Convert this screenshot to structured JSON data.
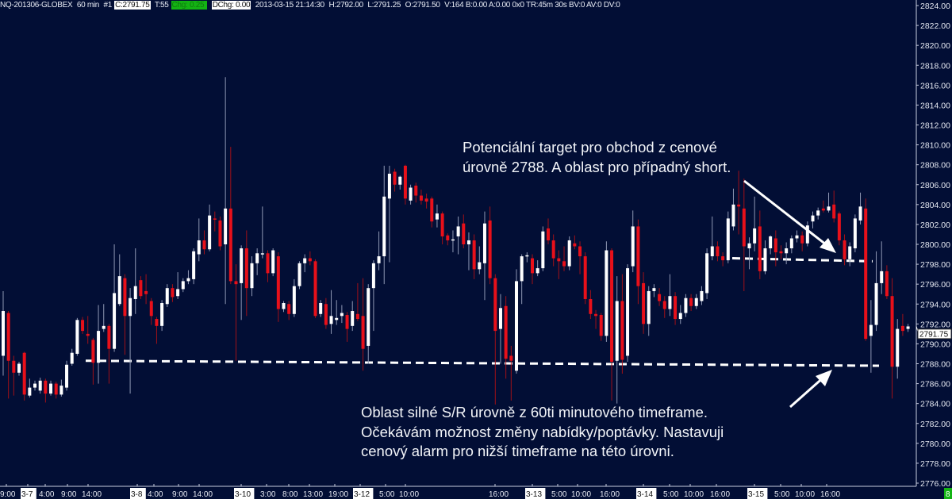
{
  "header": {
    "symbol": "NQ-201306-GLOBEX",
    "interval": "60 min",
    "id": "#1",
    "close": "C:2791.75",
    "ticks": "T:55",
    "change": "Chg: 0.25",
    "dchange": "DChg: 0.00",
    "datetime": "2013-03-15 21:14:30",
    "high": "H:2792.00",
    "low": "L:2791.25",
    "open": "O:2791.50",
    "rest": "V:164 B:0.00 A:0.00 0x0 TR:45m 30s BV:0 AV:0 DV:0"
  },
  "colors": {
    "background": "#020e35",
    "up": "#ffffff",
    "down": "#e8101a",
    "axis": "#c8cde0",
    "change_badge": "#13b313"
  },
  "annotations": {
    "top": [
      "Potenciální target pro obchod z cenové",
      "úrovně 2788. A oblast pro případný short."
    ],
    "bottom": [
      "Oblast silné S/R úrovně z 60ti minutového timeframe.",
      "Očekávám možnost změny nabídky/poptávky. Nastavuji",
      "cenový alarm pro nižší timeframe na této úrovni."
    ]
  },
  "corner_badge": "8",
  "chart_data": {
    "type": "candlestick",
    "instrument": "NQ-201306-GLOBEX",
    "ylim": [
      2776,
      2824
    ],
    "y_ticks": [
      "2824.00",
      "2822.00",
      "2820.00",
      "2818.00",
      "2816.00",
      "2814.00",
      "2812.00",
      "2810.00",
      "2808.00",
      "2806.00",
      "2804.00",
      "2802.00",
      "2800.00",
      "2798.00",
      "2796.00",
      "2794.00",
      "2792.00",
      "2790.00",
      "2788.00",
      "2786.00",
      "2784.00",
      "2782.00",
      "2780.00",
      "2778.00",
      "2776.00"
    ],
    "last_price": 2791.75,
    "last_price_label": "2791.75",
    "x_ticks": [
      {
        "label": "9:00",
        "date": false
      },
      {
        "label": "3-7",
        "date": true
      },
      {
        "label": "4:00",
        "date": false
      },
      {
        "label": "9:00",
        "date": false
      },
      {
        "label": "14:00",
        "date": false
      },
      {
        "label": "3-8",
        "date": true
      },
      {
        "label": "4:00",
        "date": false
      },
      {
        "label": "9:00",
        "date": false
      },
      {
        "label": "14:00",
        "date": false
      },
      {
        "label": "3-10",
        "date": true
      },
      {
        "label": "3:00",
        "date": false
      },
      {
        "label": "8:00",
        "date": false
      },
      {
        "label": "13:00",
        "date": false
      },
      {
        "label": "19:00",
        "date": false
      },
      {
        "label": "3-12",
        "date": true
      },
      {
        "label": "5:00",
        "date": false
      },
      {
        "label": "10:00",
        "date": false
      },
      {
        "label": "16:00",
        "date": false
      },
      {
        "label": "3-13",
        "date": true
      },
      {
        "label": "5:00",
        "date": false
      },
      {
        "label": "10:00",
        "date": false
      },
      {
        "label": "16:00",
        "date": false
      },
      {
        "label": "3-14",
        "date": true
      },
      {
        "label": "5:00",
        "date": false
      },
      {
        "label": "10:00",
        "date": false
      },
      {
        "label": "16:00",
        "date": false
      },
      {
        "label": "3-15",
        "date": true
      },
      {
        "label": "5:00",
        "date": false
      },
      {
        "label": "10:00",
        "date": false
      },
      {
        "label": "16:00",
        "date": false
      }
    ],
    "levels": [
      {
        "name": "support-resistance",
        "from": 2788.3,
        "to": 2787.8
      },
      {
        "name": "target",
        "from": 2798.6,
        "to": 2798.3
      }
    ],
    "ohlc": [
      [
        2788.8,
        2795.3,
        2786.8,
        2793.3
      ],
      [
        2793.1,
        2793.3,
        2784.5,
        2788.3
      ],
      [
        2788.3,
        2788.8,
        2784.8,
        2787.1
      ],
      [
        2787.1,
        2788.2,
        2786.8,
        2788.0
      ],
      [
        2789.1,
        2789.2,
        2784.3,
        2784.9
      ],
      [
        2784.8,
        2786.5,
        2784.6,
        2785.6
      ],
      [
        2785.6,
        2786.3,
        2785.3,
        2786.0
      ],
      [
        2785.3,
        2786.6,
        2785.0,
        2786.3
      ],
      [
        2786.3,
        2786.5,
        2784.1,
        2785.0
      ],
      [
        2785.0,
        2786.3,
        2784.8,
        2786.0
      ],
      [
        2786.0,
        2786.2,
        2784.5,
        2784.9
      ],
      [
        2784.9,
        2786.4,
        2784.7,
        2785.8
      ],
      [
        2785.6,
        2788.3,
        2785.3,
        2787.9
      ],
      [
        2788.0,
        2789.5,
        2787.8,
        2789.1
      ],
      [
        2789.0,
        2792.6,
        2788.8,
        2792.4
      ],
      [
        2792.4,
        2792.7,
        2791.0,
        2791.3
      ],
      [
        2791.0,
        2792.8,
        2790.0,
        2790.8
      ],
      [
        2790.4,
        2790.6,
        2785.9,
        2788.1
      ],
      [
        2788.1,
        2793.9,
        2786.0,
        2791.3
      ],
      [
        2791.5,
        2794.0,
        2791.2,
        2791.8
      ],
      [
        2791.8,
        2792.0,
        2786.0,
        2789.5
      ],
      [
        2789.5,
        2800.0,
        2789.2,
        2795.1
      ],
      [
        2794.0,
        2799.0,
        2793.8,
        2796.8
      ],
      [
        2796.6,
        2797.0,
        2788.9,
        2792.8
      ],
      [
        2792.8,
        2795.6,
        2785.0,
        2794.6
      ],
      [
        2794.5,
        2799.6,
        2793.0,
        2795.8
      ],
      [
        2796.4,
        2796.8,
        2794.5,
        2794.8
      ],
      [
        2795.3,
        2797.0,
        2794.0,
        2795.0
      ],
      [
        2794.3,
        2794.6,
        2791.9,
        2792.8
      ],
      [
        2792.5,
        2792.7,
        2790.0,
        2791.8
      ],
      [
        2791.8,
        2794.4,
        2791.3,
        2794.1
      ],
      [
        2794.0,
        2796.0,
        2793.7,
        2795.6
      ],
      [
        2795.6,
        2796.0,
        2794.2,
        2794.7
      ],
      [
        2794.8,
        2797.2,
        2794.5,
        2795.5
      ],
      [
        2795.5,
        2796.6,
        2795.2,
        2796.3
      ],
      [
        2796.3,
        2797.4,
        2796.0,
        2796.6
      ],
      [
        2796.5,
        2799.6,
        2796.0,
        2799.3
      ],
      [
        2799.0,
        2802.6,
        2798.3,
        2800.4
      ],
      [
        2800.4,
        2801.4,
        2799.0,
        2799.5
      ],
      [
        2799.5,
        2804.0,
        2799.3,
        2802.9
      ],
      [
        2802.6,
        2803.3,
        2801.3,
        2802.5
      ],
      [
        2802.4,
        2802.8,
        2799.4,
        2799.8
      ],
      [
        2800.0,
        2816.8,
        2794.0,
        2803.6
      ],
      [
        2803.6,
        2809.8,
        2796.0,
        2796.3
      ],
      [
        2796.3,
        2798.0,
        2788.3,
        2796.0
      ],
      [
        2796.1,
        2799.9,
        2792.4,
        2799.6
      ],
      [
        2799.6,
        2801.4,
        2792.8,
        2795.6
      ],
      [
        2795.6,
        2798.8,
        2794.8,
        2798.1
      ],
      [
        2798.1,
        2799.6,
        2796.9,
        2799.1
      ],
      [
        2799.0,
        2803.8,
        2798.6,
        2799.1
      ],
      [
        2799.1,
        2799.4,
        2796.2,
        2797.1
      ],
      [
        2797.1,
        2799.6,
        2796.8,
        2799.4
      ],
      [
        2798.8,
        2799.2,
        2792.2,
        2793.5
      ],
      [
        2793.5,
        2794.3,
        2793.2,
        2794.1
      ],
      [
        2794.0,
        2794.3,
        2792.4,
        2793.0
      ],
      [
        2793.0,
        2796.5,
        2792.7,
        2795.8
      ],
      [
        2795.8,
        2798.3,
        2795.5,
        2798.1
      ],
      [
        2798.1,
        2799.0,
        2797.2,
        2798.6
      ],
      [
        2798.6,
        2799.3,
        2797.9,
        2798.3
      ],
      [
        2798.3,
        2798.5,
        2792.6,
        2792.8
      ],
      [
        2793.0,
        2794.4,
        2792.7,
        2794.1
      ],
      [
        2794.0,
        2794.6,
        2791.5,
        2791.9
      ],
      [
        2792.0,
        2795.4,
        2791.0,
        2792.8
      ],
      [
        2792.4,
        2794.4,
        2791.9,
        2792.6
      ],
      [
        2792.8,
        2793.9,
        2792.1,
        2793.1
      ],
      [
        2792.9,
        2793.2,
        2790.2,
        2791.5
      ],
      [
        2791.8,
        2794.3,
        2791.3,
        2793.3
      ],
      [
        2793.0,
        2796.1,
        2792.3,
        2792.5
      ],
      [
        2792.8,
        2796.6,
        2787.3,
        2789.5
      ],
      [
        2789.8,
        2796.0,
        2788.0,
        2795.6
      ],
      [
        2795.6,
        2798.4,
        2791.3,
        2798.1
      ],
      [
        2798.1,
        2801.3,
        2797.4,
        2798.8
      ],
      [
        2798.8,
        2807.9,
        2796.0,
        2804.8
      ],
      [
        2804.6,
        2807.9,
        2798.2,
        2807.1
      ],
      [
        2807.3,
        2807.6,
        2805.3,
        2806.0
      ],
      [
        2806.0,
        2806.9,
        2805.5,
        2806.8
      ],
      [
        2807.9,
        2808.0,
        2804.0,
        2804.6
      ],
      [
        2804.4,
        2806.0,
        2804.0,
        2805.7
      ],
      [
        2805.9,
        2806.2,
        2804.2,
        2804.9
      ],
      [
        2804.9,
        2805.5,
        2804.0,
        2804.4
      ],
      [
        2804.6,
        2805.1,
        2803.6,
        2804.3
      ],
      [
        2804.6,
        2804.8,
        2801.7,
        2802.3
      ],
      [
        2802.5,
        2804.0,
        2801.7,
        2803.1
      ],
      [
        2803.1,
        2803.3,
        2800.0,
        2800.8
      ],
      [
        2800.9,
        2801.1,
        2799.9,
        2800.4
      ],
      [
        2800.5,
        2801.4,
        2799.2,
        2800.5
      ],
      [
        2800.8,
        2802.8,
        2799.0,
        2801.8
      ],
      [
        2802.1,
        2803.0,
        2799.6,
        2800.0
      ],
      [
        2800.0,
        2801.2,
        2797.4,
        2800.4
      ],
      [
        2800.4,
        2801.0,
        2796.5,
        2797.5
      ],
      [
        2797.5,
        2799.8,
        2797.0,
        2798.2
      ],
      [
        2798.1,
        2803.3,
        2794.4,
        2802.1
      ],
      [
        2802.4,
        2803.8,
        2796.0,
        2796.6
      ],
      [
        2796.6,
        2797.0,
        2783.9,
        2791.3
      ],
      [
        2791.5,
        2795.0,
        2788.0,
        2793.6
      ],
      [
        2793.8,
        2794.8,
        2786.5,
        2788.5
      ],
      [
        2788.8,
        2789.8,
        2784.3,
        2788.3
      ],
      [
        2787.3,
        2797.5,
        2787.0,
        2796.3
      ],
      [
        2796.3,
        2799.0,
        2794.0,
        2798.8
      ],
      [
        2798.8,
        2799.2,
        2798.2,
        2798.9
      ],
      [
        2798.6,
        2799.0,
        2796.0,
        2797.1
      ],
      [
        2797.1,
        2798.4,
        2796.8,
        2797.6
      ],
      [
        2797.6,
        2801.8,
        2797.3,
        2801.3
      ],
      [
        2801.6,
        2802.6,
        2800.0,
        2800.4
      ],
      [
        2800.4,
        2801.0,
        2797.8,
        2798.6
      ],
      [
        2798.6,
        2799.4,
        2796.5,
        2798.3
      ],
      [
        2798.3,
        2799.8,
        2797.3,
        2797.8
      ],
      [
        2797.8,
        2800.8,
        2797.4,
        2800.4
      ],
      [
        2800.1,
        2800.9,
        2799.5,
        2799.8
      ],
      [
        2799.8,
        2800.3,
        2797.0,
        2798.8
      ],
      [
        2798.8,
        2799.2,
        2794.0,
        2794.5
      ],
      [
        2794.5,
        2795.4,
        2792.5,
        2793.0
      ],
      [
        2793.0,
        2793.4,
        2791.5,
        2792.8
      ],
      [
        2792.9,
        2793.1,
        2790.3,
        2790.8
      ],
      [
        2790.8,
        2800.3,
        2790.2,
        2799.4
      ],
      [
        2799.4,
        2799.6,
        2784.3,
        2788.2
      ],
      [
        2788.3,
        2796.8,
        2784.0,
        2794.3
      ],
      [
        2794.3,
        2797.0,
        2787.0,
        2788.4
      ],
      [
        2788.8,
        2798.0,
        2788.2,
        2797.6
      ],
      [
        2797.8,
        2803.4,
        2797.2,
        2801.8
      ],
      [
        2801.8,
        2802.5,
        2794.0,
        2795.8
      ],
      [
        2796.1,
        2797.2,
        2791.0,
        2792.0
      ],
      [
        2792.0,
        2795.8,
        2790.8,
        2795.3
      ],
      [
        2795.3,
        2796.0,
        2794.7,
        2795.6
      ],
      [
        2795.0,
        2795.6,
        2793.8,
        2794.3
      ],
      [
        2794.3,
        2794.8,
        2792.6,
        2793.5
      ],
      [
        2793.5,
        2797.0,
        2792.8,
        2794.8
      ],
      [
        2794.8,
        2795.2,
        2791.9,
        2792.5
      ],
      [
        2792.5,
        2793.9,
        2792.0,
        2793.1
      ],
      [
        2793.1,
        2795.0,
        2792.7,
        2794.6
      ],
      [
        2794.6,
        2795.0,
        2793.3,
        2793.8
      ],
      [
        2793.8,
        2795.0,
        2793.5,
        2794.6
      ],
      [
        2794.3,
        2795.8,
        2793.9,
        2795.3
      ],
      [
        2795.1,
        2799.6,
        2794.5,
        2799.1
      ],
      [
        2798.8,
        2802.8,
        2798.4,
        2799.8
      ],
      [
        2799.8,
        2800.3,
        2798.3,
        2798.8
      ],
      [
        2798.8,
        2799.2,
        2797.8,
        2798.4
      ],
      [
        2798.4,
        2803.3,
        2798.1,
        2802.6
      ],
      [
        2801.8,
        2805.6,
        2801.4,
        2804.0
      ],
      [
        2804.0,
        2807.4,
        2801.0,
        2803.8
      ],
      [
        2803.6,
        2806.6,
        2795.3,
        2799.8
      ],
      [
        2799.6,
        2800.7,
        2797.5,
        2800.1
      ],
      [
        2800.1,
        2804.8,
        2799.3,
        2801.6
      ],
      [
        2801.8,
        2803.4,
        2796.5,
        2797.3
      ],
      [
        2797.3,
        2800.4,
        2797.0,
        2799.6
      ],
      [
        2799.6,
        2800.9,
        2799.0,
        2800.8
      ],
      [
        2800.6,
        2801.4,
        2797.8,
        2799.2
      ],
      [
        2799.3,
        2799.9,
        2798.5,
        2799.1
      ],
      [
        2799.1,
        2800.2,
        2798.0,
        2799.6
      ],
      [
        2799.6,
        2800.9,
        2799.1,
        2800.6
      ],
      [
        2800.6,
        2801.4,
        2800.2,
        2800.9
      ],
      [
        2800.9,
        2801.3,
        2799.3,
        2800.1
      ],
      [
        2800.1,
        2802.3,
        2799.8,
        2801.9
      ],
      [
        2802.3,
        2803.3,
        2801.6,
        2802.9
      ],
      [
        2802.9,
        2803.7,
        2802.5,
        2803.4
      ],
      [
        2803.6,
        2804.4,
        2803.2,
        2803.4
      ],
      [
        2803.4,
        2805.2,
        2803.2,
        2803.8
      ],
      [
        2804.0,
        2805.4,
        2802.2,
        2802.6
      ],
      [
        2803.1,
        2803.3,
        2799.9,
        2800.4
      ],
      [
        2800.4,
        2801.0,
        2797.9,
        2798.5
      ],
      [
        2798.5,
        2800.2,
        2797.8,
        2799.8
      ],
      [
        2799.6,
        2803.0,
        2799.2,
        2802.6
      ],
      [
        2802.4,
        2805.2,
        2802.0,
        2803.8
      ],
      [
        2803.6,
        2804.6,
        2790.3,
        2790.5
      ],
      [
        2790.8,
        2794.4,
        2787.1,
        2791.9
      ],
      [
        2791.9,
        2799.3,
        2791.3,
        2796.1
      ],
      [
        2796.1,
        2800.3,
        2795.0,
        2797.3
      ],
      [
        2797.3,
        2797.9,
        2794.5,
        2794.8
      ],
      [
        2794.8,
        2796.6,
        2784.5,
        2787.7
      ],
      [
        2787.7,
        2792.5,
        2786.5,
        2791.5
      ],
      [
        2791.8,
        2793.0,
        2790.8,
        2791.3
      ],
      [
        2791.5,
        2792.0,
        2791.2,
        2791.75
      ]
    ]
  }
}
